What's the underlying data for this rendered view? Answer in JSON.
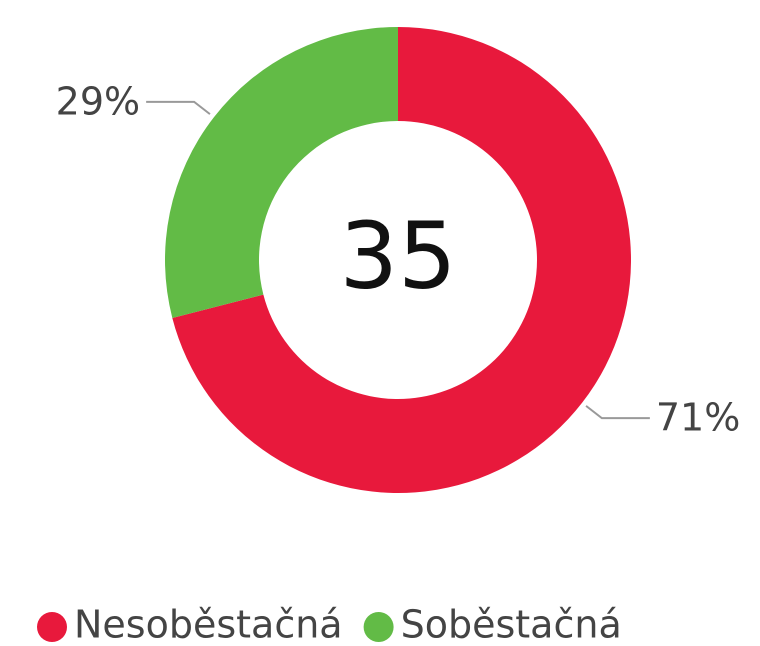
{
  "chart_data": {
    "type": "donut",
    "categories": [
      "Nesoběstačná",
      "Soběstačná"
    ],
    "values": [
      71,
      29
    ],
    "value_labels": [
      "71%",
      "29%"
    ],
    "colors": [
      "#e8193c",
      "#62bb46"
    ],
    "total": 35
  }
}
